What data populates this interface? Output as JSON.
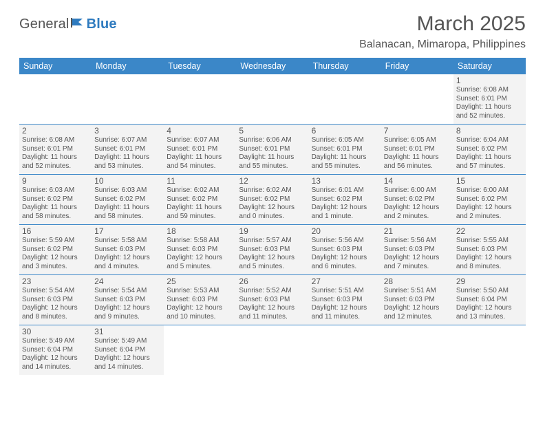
{
  "brand": {
    "part1": "General",
    "part2": "Blue"
  },
  "title": "March 2025",
  "location": "Balanacan, Mimaropa, Philippines",
  "colors": {
    "header_bg": "#3b87c8",
    "header_fg": "#ffffff",
    "cell_bg": "#f3f3f3",
    "page_bg": "#ffffff",
    "text": "#555555",
    "rule": "#3b87c8"
  },
  "day_headers": [
    "Sunday",
    "Monday",
    "Tuesday",
    "Wednesday",
    "Thursday",
    "Friday",
    "Saturday"
  ],
  "weeks": [
    [
      {
        "blank": true
      },
      {
        "blank": true
      },
      {
        "blank": true
      },
      {
        "blank": true
      },
      {
        "blank": true
      },
      {
        "blank": true
      },
      {
        "day": "1",
        "sunrise": "Sunrise: 6:08 AM",
        "sunset": "Sunset: 6:01 PM",
        "daylight": "Daylight: 11 hours and 52 minutes."
      }
    ],
    [
      {
        "day": "2",
        "sunrise": "Sunrise: 6:08 AM",
        "sunset": "Sunset: 6:01 PM",
        "daylight": "Daylight: 11 hours and 52 minutes."
      },
      {
        "day": "3",
        "sunrise": "Sunrise: 6:07 AM",
        "sunset": "Sunset: 6:01 PM",
        "daylight": "Daylight: 11 hours and 53 minutes."
      },
      {
        "day": "4",
        "sunrise": "Sunrise: 6:07 AM",
        "sunset": "Sunset: 6:01 PM",
        "daylight": "Daylight: 11 hours and 54 minutes."
      },
      {
        "day": "5",
        "sunrise": "Sunrise: 6:06 AM",
        "sunset": "Sunset: 6:01 PM",
        "daylight": "Daylight: 11 hours and 55 minutes."
      },
      {
        "day": "6",
        "sunrise": "Sunrise: 6:05 AM",
        "sunset": "Sunset: 6:01 PM",
        "daylight": "Daylight: 11 hours and 55 minutes."
      },
      {
        "day": "7",
        "sunrise": "Sunrise: 6:05 AM",
        "sunset": "Sunset: 6:01 PM",
        "daylight": "Daylight: 11 hours and 56 minutes."
      },
      {
        "day": "8",
        "sunrise": "Sunrise: 6:04 AM",
        "sunset": "Sunset: 6:02 PM",
        "daylight": "Daylight: 11 hours and 57 minutes."
      }
    ],
    [
      {
        "day": "9",
        "sunrise": "Sunrise: 6:03 AM",
        "sunset": "Sunset: 6:02 PM",
        "daylight": "Daylight: 11 hours and 58 minutes."
      },
      {
        "day": "10",
        "sunrise": "Sunrise: 6:03 AM",
        "sunset": "Sunset: 6:02 PM",
        "daylight": "Daylight: 11 hours and 58 minutes."
      },
      {
        "day": "11",
        "sunrise": "Sunrise: 6:02 AM",
        "sunset": "Sunset: 6:02 PM",
        "daylight": "Daylight: 11 hours and 59 minutes."
      },
      {
        "day": "12",
        "sunrise": "Sunrise: 6:02 AM",
        "sunset": "Sunset: 6:02 PM",
        "daylight": "Daylight: 12 hours and 0 minutes."
      },
      {
        "day": "13",
        "sunrise": "Sunrise: 6:01 AM",
        "sunset": "Sunset: 6:02 PM",
        "daylight": "Daylight: 12 hours and 1 minute."
      },
      {
        "day": "14",
        "sunrise": "Sunrise: 6:00 AM",
        "sunset": "Sunset: 6:02 PM",
        "daylight": "Daylight: 12 hours and 2 minutes."
      },
      {
        "day": "15",
        "sunrise": "Sunrise: 6:00 AM",
        "sunset": "Sunset: 6:02 PM",
        "daylight": "Daylight: 12 hours and 2 minutes."
      }
    ],
    [
      {
        "day": "16",
        "sunrise": "Sunrise: 5:59 AM",
        "sunset": "Sunset: 6:02 PM",
        "daylight": "Daylight: 12 hours and 3 minutes."
      },
      {
        "day": "17",
        "sunrise": "Sunrise: 5:58 AM",
        "sunset": "Sunset: 6:03 PM",
        "daylight": "Daylight: 12 hours and 4 minutes."
      },
      {
        "day": "18",
        "sunrise": "Sunrise: 5:58 AM",
        "sunset": "Sunset: 6:03 PM",
        "daylight": "Daylight: 12 hours and 5 minutes."
      },
      {
        "day": "19",
        "sunrise": "Sunrise: 5:57 AM",
        "sunset": "Sunset: 6:03 PM",
        "daylight": "Daylight: 12 hours and 5 minutes."
      },
      {
        "day": "20",
        "sunrise": "Sunrise: 5:56 AM",
        "sunset": "Sunset: 6:03 PM",
        "daylight": "Daylight: 12 hours and 6 minutes."
      },
      {
        "day": "21",
        "sunrise": "Sunrise: 5:56 AM",
        "sunset": "Sunset: 6:03 PM",
        "daylight": "Daylight: 12 hours and 7 minutes."
      },
      {
        "day": "22",
        "sunrise": "Sunrise: 5:55 AM",
        "sunset": "Sunset: 6:03 PM",
        "daylight": "Daylight: 12 hours and 8 minutes."
      }
    ],
    [
      {
        "day": "23",
        "sunrise": "Sunrise: 5:54 AM",
        "sunset": "Sunset: 6:03 PM",
        "daylight": "Daylight: 12 hours and 8 minutes."
      },
      {
        "day": "24",
        "sunrise": "Sunrise: 5:54 AM",
        "sunset": "Sunset: 6:03 PM",
        "daylight": "Daylight: 12 hours and 9 minutes."
      },
      {
        "day": "25",
        "sunrise": "Sunrise: 5:53 AM",
        "sunset": "Sunset: 6:03 PM",
        "daylight": "Daylight: 12 hours and 10 minutes."
      },
      {
        "day": "26",
        "sunrise": "Sunrise: 5:52 AM",
        "sunset": "Sunset: 6:03 PM",
        "daylight": "Daylight: 12 hours and 11 minutes."
      },
      {
        "day": "27",
        "sunrise": "Sunrise: 5:51 AM",
        "sunset": "Sunset: 6:03 PM",
        "daylight": "Daylight: 12 hours and 11 minutes."
      },
      {
        "day": "28",
        "sunrise": "Sunrise: 5:51 AM",
        "sunset": "Sunset: 6:03 PM",
        "daylight": "Daylight: 12 hours and 12 minutes."
      },
      {
        "day": "29",
        "sunrise": "Sunrise: 5:50 AM",
        "sunset": "Sunset: 6:04 PM",
        "daylight": "Daylight: 12 hours and 13 minutes."
      }
    ],
    [
      {
        "day": "30",
        "sunrise": "Sunrise: 5:49 AM",
        "sunset": "Sunset: 6:04 PM",
        "daylight": "Daylight: 12 hours and 14 minutes."
      },
      {
        "day": "31",
        "sunrise": "Sunrise: 5:49 AM",
        "sunset": "Sunset: 6:04 PM",
        "daylight": "Daylight: 12 hours and 14 minutes."
      },
      {
        "blank": true
      },
      {
        "blank": true
      },
      {
        "blank": true
      },
      {
        "blank": true
      },
      {
        "blank": true
      }
    ]
  ]
}
